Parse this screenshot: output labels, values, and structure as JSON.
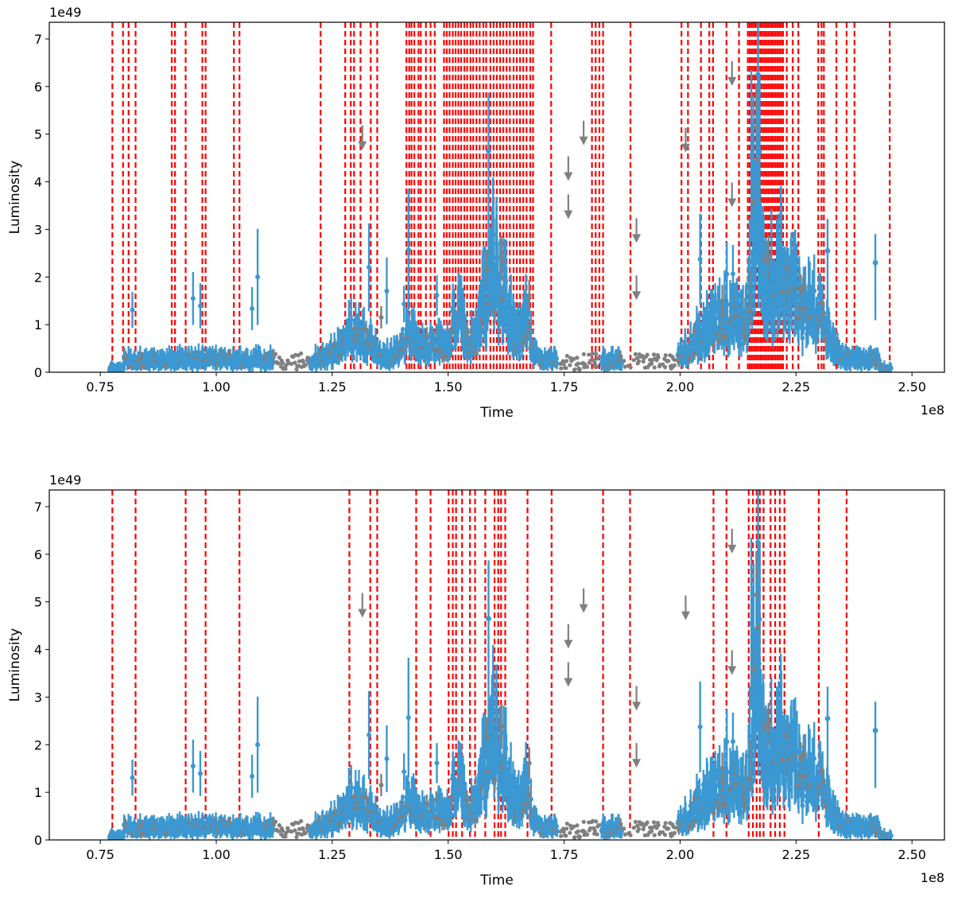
{
  "chart_data": [
    {
      "type": "scatter",
      "panel": "top",
      "title": "",
      "xlabel": "Time",
      "ylabel": "Luminosity",
      "x_offset_label": "1e8",
      "y_offset_label": "1e49",
      "xlim": [
        0.64,
        2.57
      ],
      "ylim": [
        0,
        7.35
      ],
      "x_ticks": [
        "0.75",
        "1.00",
        "1.25",
        "1.50",
        "1.75",
        "2.00",
        "2.25",
        "2.50"
      ],
      "y_ticks": [
        "0",
        "1",
        "2",
        "3",
        "4",
        "5",
        "6",
        "7"
      ],
      "grid": false,
      "colors": {
        "detections": "#3b98d2",
        "upper_limits": "#808080",
        "vlines": "#ff0000"
      },
      "change_points_x": [
        0.776,
        0.799,
        0.811,
        0.826,
        0.904,
        0.911,
        0.934,
        0.97,
        0.977,
        1.038,
        1.05,
        1.225,
        1.278,
        1.29,
        1.297,
        1.311,
        1.333,
        1.347,
        1.41,
        1.416,
        1.421,
        1.427,
        1.436,
        1.441,
        1.452,
        1.462,
        1.471,
        1.491,
        1.497,
        1.503,
        1.51,
        1.516,
        1.522,
        1.528,
        1.535,
        1.541,
        1.548,
        1.554,
        1.561,
        1.568,
        1.576,
        1.582,
        1.591,
        1.598,
        1.605,
        1.612,
        1.619,
        1.626,
        1.633,
        1.641,
        1.648,
        1.655,
        1.662,
        1.669,
        1.677,
        1.683,
        1.722,
        1.81,
        1.818,
        1.826,
        1.834,
        1.893,
        2.003,
        2.017,
        2.045,
        2.063,
        2.071,
        2.1,
        2.127,
        2.146,
        2.15,
        2.154,
        2.158,
        2.162,
        2.166,
        2.17,
        2.174,
        2.178,
        2.182,
        2.186,
        2.19,
        2.194,
        2.198,
        2.202,
        2.206,
        2.21,
        2.214,
        2.218,
        2.222,
        2.23,
        2.243,
        2.255,
        2.298,
        2.305,
        2.31,
        2.337,
        2.359,
        2.376,
        2.452
      ],
      "highlight_points": [
        {
          "x": 1.315,
          "y": 4.75,
          "kind": "upper_limit"
        },
        {
          "x": 1.759,
          "y": 4.1,
          "kind": "upper_limit"
        },
        {
          "x": 1.759,
          "y": 3.3,
          "kind": "upper_limit"
        },
        {
          "x": 1.792,
          "y": 4.85,
          "kind": "upper_limit"
        },
        {
          "x": 1.906,
          "y": 2.8,
          "kind": "upper_limit"
        },
        {
          "x": 1.906,
          "y": 1.6,
          "kind": "upper_limit"
        },
        {
          "x": 2.012,
          "y": 4.7,
          "kind": "upper_limit"
        },
        {
          "x": 2.112,
          "y": 6.1,
          "kind": "upper_limit"
        },
        {
          "x": 2.112,
          "y": 3.55,
          "kind": "upper_limit"
        },
        {
          "x": 1.587,
          "y": 4.65,
          "kind": "detection"
        },
        {
          "x": 2.168,
          "y": 6.25,
          "kind": "detection"
        },
        {
          "x": 2.318,
          "y": 2.55,
          "kind": "detection"
        },
        {
          "x": 2.421,
          "y": 2.3,
          "kind": "detection"
        }
      ]
    },
    {
      "type": "scatter",
      "panel": "bottom",
      "title": "",
      "xlabel": "Time",
      "ylabel": "Luminosity",
      "x_offset_label": "1e8",
      "y_offset_label": "1e49",
      "xlim": [
        0.64,
        2.57
      ],
      "ylim": [
        0,
        7.35
      ],
      "x_ticks": [
        "0.75",
        "1.00",
        "1.25",
        "1.50",
        "1.75",
        "2.00",
        "2.25",
        "2.50"
      ],
      "y_ticks": [
        "0",
        "1",
        "2",
        "3",
        "4",
        "5",
        "6",
        "7"
      ],
      "grid": false,
      "colors": {
        "detections": "#3b98d2",
        "upper_limits": "#808080",
        "vlines": "#ff0000"
      },
      "change_points_x": [
        0.776,
        0.826,
        0.934,
        0.977,
        1.05,
        1.287,
        1.332,
        1.347,
        1.431,
        1.462,
        1.501,
        1.51,
        1.517,
        1.53,
        1.547,
        1.558,
        1.58,
        1.6,
        1.608,
        1.614,
        1.623,
        1.671,
        1.723,
        1.834,
        1.892,
        2.072,
        2.1,
        2.148,
        2.157,
        2.165,
        2.172,
        2.18,
        2.195,
        2.205,
        2.215,
        2.225,
        2.299,
        2.359
      ],
      "highlight_points": [
        {
          "x": 1.315,
          "y": 4.75,
          "kind": "upper_limit"
        },
        {
          "x": 1.759,
          "y": 4.1,
          "kind": "upper_limit"
        },
        {
          "x": 1.759,
          "y": 3.3,
          "kind": "upper_limit"
        },
        {
          "x": 1.792,
          "y": 4.85,
          "kind": "upper_limit"
        },
        {
          "x": 1.906,
          "y": 2.8,
          "kind": "upper_limit"
        },
        {
          "x": 1.906,
          "y": 1.6,
          "kind": "upper_limit"
        },
        {
          "x": 2.012,
          "y": 4.7,
          "kind": "upper_limit"
        },
        {
          "x": 2.112,
          "y": 6.1,
          "kind": "upper_limit"
        },
        {
          "x": 2.112,
          "y": 3.55,
          "kind": "upper_limit"
        },
        {
          "x": 1.587,
          "y": 4.65,
          "kind": "detection"
        },
        {
          "x": 2.168,
          "y": 6.25,
          "kind": "detection"
        },
        {
          "x": 2.318,
          "y": 2.55,
          "kind": "detection"
        },
        {
          "x": 2.421,
          "y": 2.3,
          "kind": "detection"
        }
      ]
    }
  ]
}
